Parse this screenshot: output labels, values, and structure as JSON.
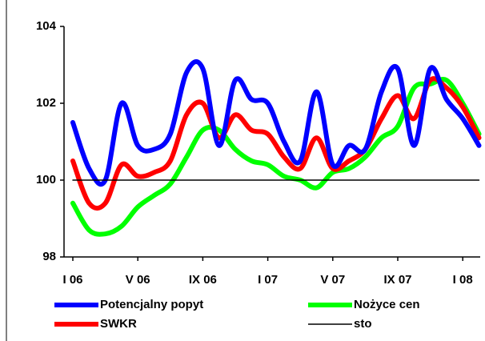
{
  "chart_data": {
    "type": "line",
    "categories": [
      "I 06",
      null,
      null,
      null,
      "V 06",
      null,
      null,
      null,
      "IX 06",
      null,
      null,
      null,
      "I 07",
      null,
      null,
      null,
      "V 07",
      null,
      null,
      null,
      "IX 07",
      null,
      null,
      null,
      "I 08",
      null
    ],
    "series": [
      {
        "name": "Potencjalny popyt",
        "color": "#0000ff",
        "width": 6,
        "values": [
          101.5,
          100.3,
          100.0,
          102.0,
          100.9,
          100.8,
          101.2,
          102.8,
          102.9,
          100.9,
          102.6,
          102.1,
          102.0,
          101.0,
          100.5,
          102.3,
          100.4,
          100.9,
          100.8,
          102.3,
          102.9,
          100.9,
          102.9,
          102.1,
          101.6,
          100.9
        ]
      },
      {
        "name": "Nożyce cen",
        "color": "#00ff00",
        "width": 6,
        "values": [
          99.4,
          98.7,
          98.6,
          98.8,
          99.3,
          99.6,
          99.9,
          100.6,
          101.3,
          101.3,
          100.8,
          100.5,
          100.4,
          100.1,
          100.0,
          99.8,
          100.2,
          100.3,
          100.6,
          101.1,
          101.4,
          102.4,
          102.5,
          102.6,
          102.0,
          101.2
        ]
      },
      {
        "name": "SWKR",
        "color": "#ff0000",
        "width": 6,
        "values": [
          100.5,
          99.4,
          99.4,
          100.4,
          100.1,
          100.2,
          100.5,
          101.7,
          102.0,
          101.1,
          101.7,
          101.3,
          101.2,
          100.6,
          100.3,
          101.1,
          100.3,
          100.5,
          100.8,
          101.6,
          102.2,
          101.6,
          102.6,
          102.4,
          101.9,
          101.1
        ]
      },
      {
        "name": "sto",
        "color": "#000000",
        "width": 1.5,
        "values": [
          100,
          100,
          100,
          100,
          100,
          100,
          100,
          100,
          100,
          100,
          100,
          100,
          100,
          100,
          100,
          100,
          100,
          100,
          100,
          100,
          100,
          100,
          100,
          100,
          100,
          100
        ]
      }
    ],
    "ylim": [
      98,
      104
    ],
    "yticks": [
      98,
      100,
      102,
      104
    ]
  }
}
